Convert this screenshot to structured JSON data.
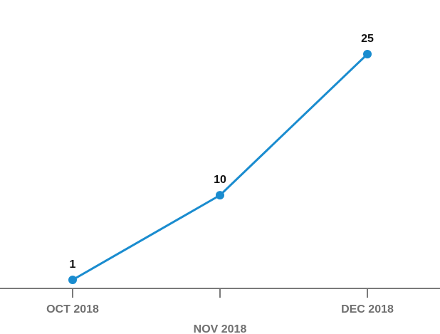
{
  "chart_data": {
    "type": "line",
    "title": "",
    "xlabel": "",
    "ylabel": "",
    "categories": [
      "OCT 2018",
      "NOV 2018",
      "DEC 2018"
    ],
    "series": [
      {
        "values": [
          1,
          10,
          25
        ],
        "color": "#1a8ccf"
      }
    ],
    "ylim": [
      0,
      25
    ],
    "grid": false,
    "legend": "none",
    "axis_color": "#7a7a7a",
    "tick_label_color": "#6f6f6f",
    "data_label_color": "#111111"
  }
}
